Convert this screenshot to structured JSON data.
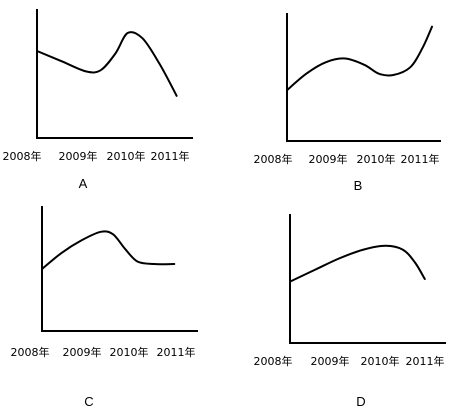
{
  "chart_data": [
    {
      "type": "line",
      "panel_label": "A",
      "categories": [
        "2008年",
        "2009年",
        "2010年",
        "2011年"
      ],
      "x": [
        2008.0,
        2008.5,
        2009.0,
        2009.3,
        2009.6,
        2009.85,
        2010.15,
        2010.5,
        2010.85
      ],
      "values": [
        0.68,
        0.6,
        0.52,
        0.53,
        0.66,
        0.82,
        0.78,
        0.58,
        0.33
      ]
    },
    {
      "type": "line",
      "panel_label": "B",
      "categories": [
        "2008年",
        "2009年",
        "2010年",
        "2011年"
      ],
      "x": [
        2008.0,
        2008.4,
        2008.8,
        2009.2,
        2009.6,
        2009.9,
        2010.2,
        2010.55,
        2010.8,
        2011.0
      ],
      "values": [
        0.4,
        0.53,
        0.62,
        0.65,
        0.6,
        0.53,
        0.52,
        0.58,
        0.73,
        0.9
      ]
    },
    {
      "type": "line",
      "panel_label": "C",
      "categories": [
        "2008年",
        "2009年",
        "2010年",
        "2011年"
      ],
      "x": [
        2008.0,
        2008.4,
        2008.8,
        2009.2,
        2009.45,
        2009.7,
        2009.95,
        2010.3,
        2010.7
      ],
      "values": [
        0.5,
        0.63,
        0.73,
        0.8,
        0.78,
        0.66,
        0.56,
        0.54,
        0.54
      ]
    },
    {
      "type": "line",
      "panel_label": "D",
      "categories": [
        "2008年",
        "2009年",
        "2010年",
        "2011年"
      ],
      "x": [
        2008.0,
        2008.5,
        2009.0,
        2009.5,
        2009.95,
        2010.3,
        2010.55,
        2010.75
      ],
      "values": [
        0.48,
        0.57,
        0.66,
        0.73,
        0.76,
        0.73,
        0.63,
        0.5
      ]
    }
  ]
}
